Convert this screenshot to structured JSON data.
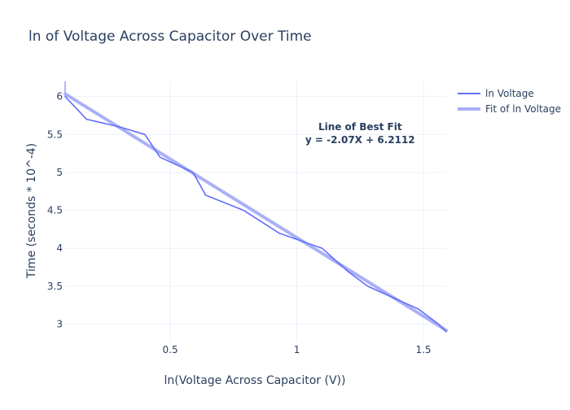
{
  "chart_data": {
    "type": "line",
    "title": "ln of Voltage Across Capacitor Over Time",
    "xlabel": "ln(Voltage Across Capacitor (V))",
    "ylabel": "Time (seconds * 10^-4)",
    "xlim": [
      0.085,
      1.59
    ],
    "ylim": [
      2.77,
      6.2
    ],
    "xticks": [
      0.5,
      1,
      1.5
    ],
    "yticks": [
      3,
      3.5,
      4,
      4.5,
      5,
      5.5,
      6
    ],
    "xtick_labels": [
      "0.5",
      "1",
      "1.5"
    ],
    "ytick_labels": [
      "3",
      "3.5",
      "4",
      "4.5",
      "5",
      "5.5",
      "6"
    ],
    "grid": true,
    "legend_position": "top-right",
    "series": [
      {
        "name": "ln Voltage",
        "color": "#636efa",
        "x": [
          0.085,
          0.17,
          0.3,
          0.4,
          0.46,
          0.59,
          0.64,
          0.79,
          0.93,
          1.1,
          1.2,
          1.28,
          1.38,
          1.48,
          1.56,
          1.59
        ],
        "y": [
          6.0,
          5.7,
          5.6,
          5.5,
          5.2,
          5.0,
          4.7,
          4.5,
          4.2,
          4.0,
          3.7,
          3.5,
          3.35,
          3.2,
          3.0,
          2.9
        ]
      },
      {
        "name": "Fit of ln Voltage",
        "color": "#a9b0f7",
        "x": [
          0.085,
          1.59
        ],
        "y": [
          6.035,
          2.9198
        ]
      }
    ],
    "annotation": {
      "line1": "Line of Best Fit",
      "line2": "y = -2.07X + 6.2112",
      "x": 1.25,
      "y": 5.45
    }
  }
}
